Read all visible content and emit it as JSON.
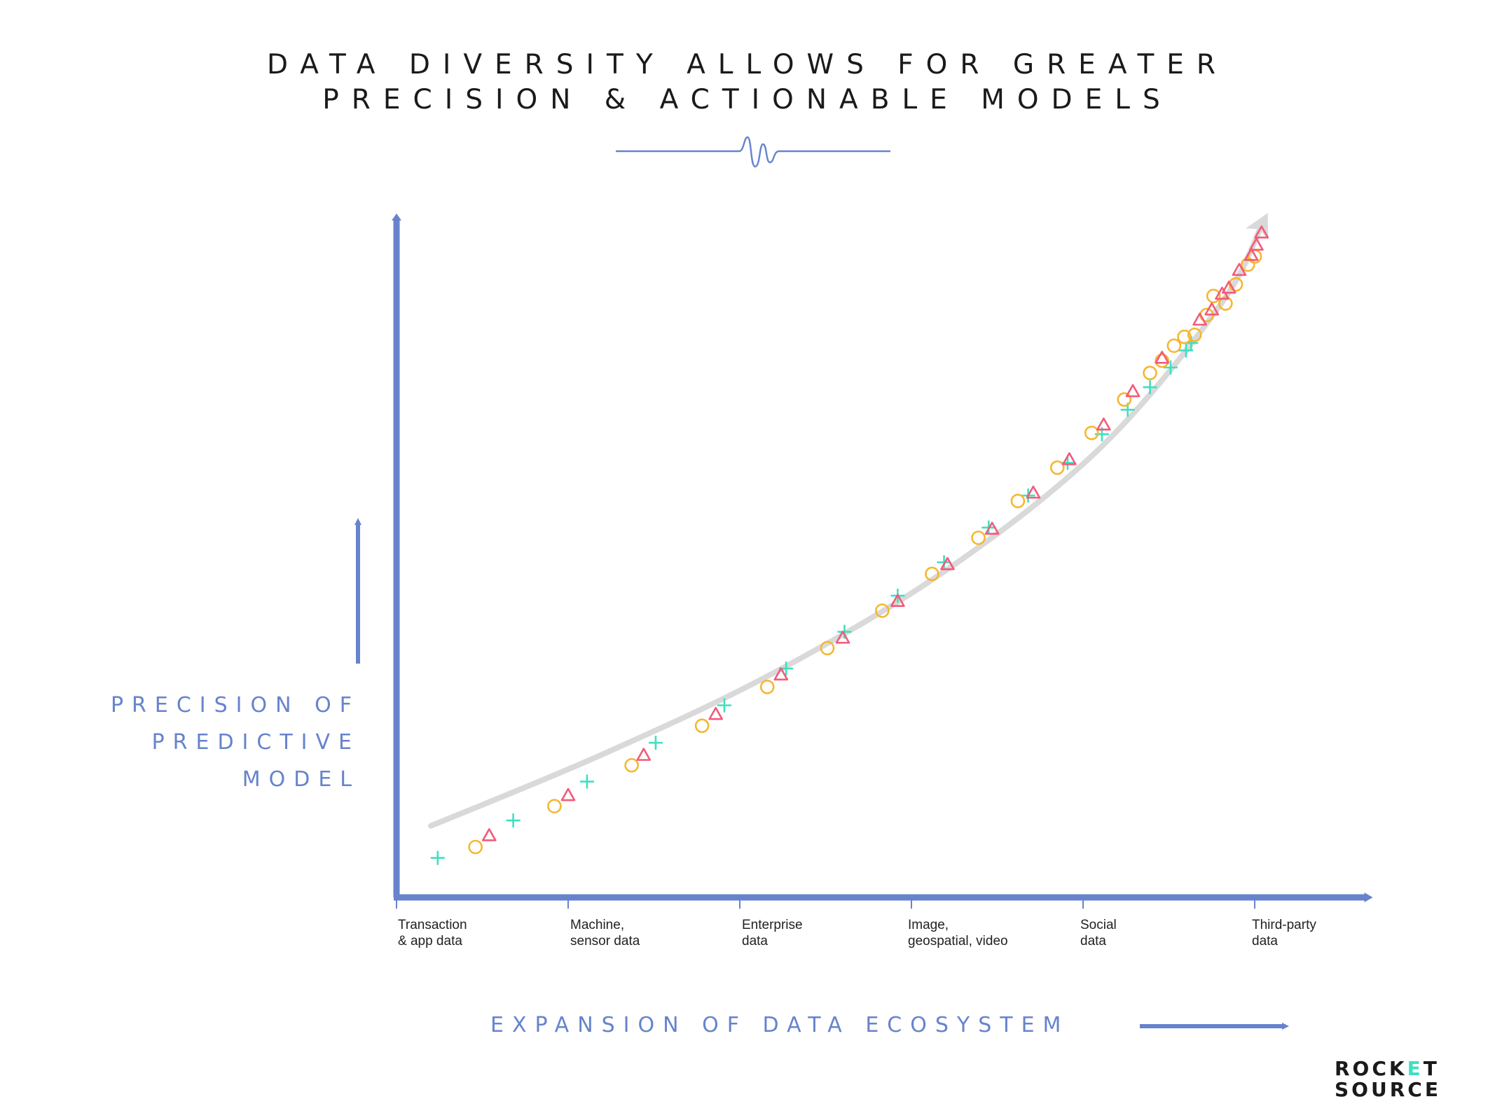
{
  "title": {
    "line1": "DATA DIVERSITY ALLOWS FOR GREATER",
    "line2": "PRECISION & ACTIONABLE MODELS"
  },
  "chart_data": {
    "type": "scatter",
    "title": "DATA DIVERSITY ALLOWS FOR GREATER PRECISION & ACTIONABLE MODELS",
    "xlabel": "EXPANSION OF DATA ECOSYSTEM",
    "ylabel": "PRECISION OF PREDICTIVE MODEL",
    "ylabel_lines": [
      "PRECISION OF",
      "PREDICTIVE",
      "MODEL"
    ],
    "xlim": [
      0,
      5.5
    ],
    "ylim": [
      0,
      100
    ],
    "categories": [
      {
        "line1": "Transaction",
        "line2": "& app data",
        "x": 0
      },
      {
        "line1": "Machine,",
        "line2": "sensor data",
        "x": 1
      },
      {
        "line1": "Enterprise",
        "line2": "data",
        "x": 2
      },
      {
        "line1": "Image,",
        "line2": "geospatial, video",
        "x": 3
      },
      {
        "line1": "Social",
        "line2": "data",
        "x": 4
      },
      {
        "line1": "Third-party",
        "line2": "data",
        "x": 5
      }
    ],
    "series": [
      {
        "name": "plus",
        "marker": "plus",
        "color": "#3ee0c0",
        "points": [
          [
            0.24,
            5.8
          ],
          [
            0.68,
            11.3
          ],
          [
            1.11,
            17.0
          ],
          [
            1.51,
            22.7
          ],
          [
            1.91,
            28.2
          ],
          [
            2.27,
            33.6
          ],
          [
            2.61,
            39.0
          ],
          [
            2.92,
            44.3
          ],
          [
            3.19,
            49.2
          ],
          [
            3.45,
            54.3
          ],
          [
            3.68,
            59.0
          ],
          [
            3.91,
            63.8
          ],
          [
            4.11,
            68.0
          ],
          [
            4.26,
            71.6
          ],
          [
            4.39,
            74.9
          ],
          [
            4.51,
            77.8
          ],
          [
            4.6,
            80.3
          ],
          [
            4.63,
            81.4
          ]
        ]
      },
      {
        "name": "circle",
        "marker": "circle",
        "color": "#f5b731",
        "points": [
          [
            0.46,
            7.4
          ],
          [
            0.92,
            13.4
          ],
          [
            1.37,
            19.4
          ],
          [
            1.78,
            25.2
          ],
          [
            2.16,
            30.9
          ],
          [
            2.51,
            36.6
          ],
          [
            2.83,
            42.1
          ],
          [
            3.12,
            47.5
          ],
          [
            3.39,
            52.8
          ],
          [
            3.62,
            58.2
          ],
          [
            3.85,
            63.1
          ],
          [
            4.05,
            68.2
          ],
          [
            4.24,
            73.1
          ],
          [
            4.39,
            77.0
          ],
          [
            4.46,
            78.8
          ],
          [
            4.53,
            81.0
          ],
          [
            4.59,
            82.3
          ],
          [
            4.65,
            82.6
          ],
          [
            4.72,
            85.5
          ],
          [
            4.76,
            88.3
          ],
          [
            4.83,
            87.2
          ],
          [
            4.89,
            90.0
          ],
          [
            4.96,
            92.9
          ],
          [
            5.0,
            94.1
          ]
        ]
      },
      {
        "name": "triangle",
        "marker": "triangle",
        "color": "#f25b7a",
        "points": [
          [
            0.54,
            9.0
          ],
          [
            1.0,
            14.9
          ],
          [
            1.44,
            20.8
          ],
          [
            1.86,
            26.8
          ],
          [
            2.24,
            32.6
          ],
          [
            2.6,
            38.0
          ],
          [
            2.92,
            43.4
          ],
          [
            3.21,
            48.8
          ],
          [
            3.47,
            54.0
          ],
          [
            3.71,
            59.3
          ],
          [
            3.92,
            64.2
          ],
          [
            4.12,
            69.3
          ],
          [
            4.29,
            74.2
          ],
          [
            4.46,
            79.1
          ],
          [
            4.68,
            84.7
          ],
          [
            4.75,
            86.2
          ],
          [
            4.81,
            88.5
          ],
          [
            4.85,
            89.4
          ],
          [
            4.91,
            92.0
          ],
          [
            4.98,
            94.2
          ],
          [
            5.01,
            95.7
          ],
          [
            5.04,
            97.5
          ]
        ]
      }
    ],
    "trend_arrow": {
      "points": [
        [
          0.2,
          10.5
        ],
        [
          1.2,
          21.0
        ],
        [
          2.2,
          33.0
        ],
        [
          3.2,
          48.0
        ],
        [
          4.1,
          66.0
        ],
        [
          4.8,
          87.0
        ],
        [
          5.05,
          99.2
        ]
      ]
    }
  },
  "logo": {
    "line1_a": "ROCK",
    "line1_b": "E",
    "line1_c": "T",
    "line2": "SOURCE"
  },
  "colors": {
    "axis": "#6683cc",
    "trend": "#d9d9d9",
    "text": "#1a1a1a"
  }
}
